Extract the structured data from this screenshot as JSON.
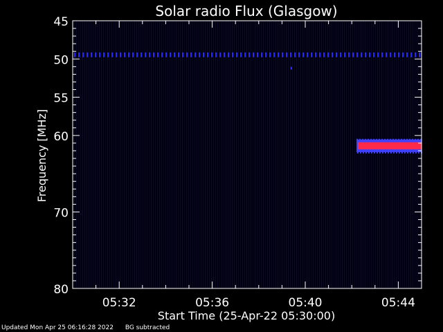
{
  "chart_data": {
    "type": "heatmap",
    "title": "Solar radio Flux (Glasgow)",
    "xlabel": "Start Time (25-Apr-22 05:30:00)",
    "ylabel": "Frequency [MHz]",
    "x_unit": "minutes after 05:30",
    "xlim": [
      0,
      15
    ],
    "ylim": [
      45,
      80
    ],
    "y_inverted": true,
    "x_ticks": [
      {
        "value": 2,
        "label": "05:32"
      },
      {
        "value": 6,
        "label": "05:36"
      },
      {
        "value": 10,
        "label": "05:40"
      },
      {
        "value": 14,
        "label": "05:44"
      }
    ],
    "y_ticks": [
      {
        "value": 45,
        "label": "45"
      },
      {
        "value": 50,
        "label": "50"
      },
      {
        "value": 55,
        "label": "55"
      },
      {
        "value": 60,
        "label": "60"
      },
      {
        "value": 70,
        "label": "70"
      },
      {
        "value": 80,
        "label": "80"
      }
    ],
    "background_color": "#000010",
    "features": [
      {
        "kind": "constant-line",
        "frequency_mhz": 49.5,
        "x_start": 0,
        "x_end": 15,
        "color": "#2a2aff"
      },
      {
        "kind": "point",
        "frequency_mhz": 51.2,
        "x": 9.4,
        "color": "#3030ff"
      },
      {
        "kind": "band",
        "frequency_mhz_low": 60.8,
        "frequency_mhz_high": 61.9,
        "x_start": 12.2,
        "x_end": 15,
        "color": "#ff2a4a",
        "edge_color": "#4040ff"
      }
    ]
  },
  "footer": {
    "updated": "Updated Mon Apr 25 06:16:28 2022",
    "bg_note": "BG subtracted"
  }
}
